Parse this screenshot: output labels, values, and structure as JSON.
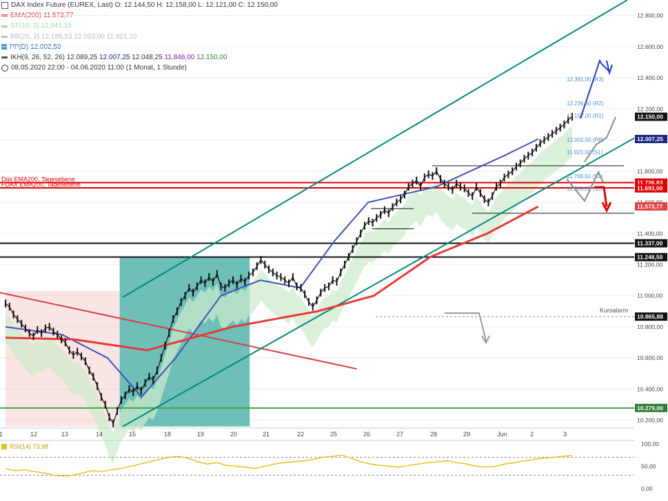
{
  "legend": {
    "header": "DAX Index Future (EUREX, Last)  O: 12.144,50  H: 12.158,00  L: 12.121,00  C: 12.150,00",
    "ema": "EMA(200)",
    "ema_value": "11.573,77",
    "st": "ST(10, 3)",
    "st_value": "12.041,15",
    "bb": "BB(20, 2)",
    "bb_values": "12.185,53  12.053,00  11.921,10",
    "pp": "PP(D)",
    "pp_value": "12.002,50",
    "ikh": "IKH(9, 26, 52, 26)",
    "ikh_values": [
      "12.089,25",
      "12.007,25",
      "12.048,25",
      "11.846,00",
      "12.150,00"
    ],
    "range": "08.05.2020 22:00 - 04.06.2020 11:00  (1 Monat, 1 Stunde)"
  },
  "colors": {
    "candle": "#111111",
    "ema": "#e53935",
    "channel": "#00897b",
    "kijun": "#3f51b5",
    "chikou": "#7b1fa2",
    "cloud_green": "#cdebcc",
    "cloud_grey": "#cfd3d8",
    "support": "#111111",
    "green_line": "#43a047",
    "rsi": "#e6c21a",
    "pivot_text": "#4a90d9",
    "arrow_blue": "#1f3fbf",
    "arrow_red": "#e00000",
    "arrow_grey": "#888888"
  },
  "chart_data": {
    "type": "line",
    "title": "DAX Index Future (EUREX, Last)",
    "ylim": [
      10150,
      12900
    ],
    "y_ticks": [
      "12.800,00",
      "12.600,00",
      "12.400,00",
      "12.200,00",
      "12.000,00",
      "11.800,00",
      "11.600,00",
      "11.400,00",
      "11.200,00",
      "11.000,00",
      "10.800,00",
      "10.600,00",
      "10.400,00",
      "10.200,00"
    ],
    "x_ticks": [
      "1",
      "12",
      "13",
      "14",
      "15",
      "18",
      "19",
      "20",
      "21",
      "22",
      "25",
      "26",
      "27",
      "28",
      "29",
      "Jun",
      "2",
      "3"
    ],
    "price_labels": [
      {
        "value": "12.150,00",
        "y": 12150,
        "bg": "#111111",
        "fg": "#ffffff"
      },
      {
        "value": "12.007,25",
        "y": 12007,
        "bg": "#1a237e",
        "fg": "#ffffff"
      },
      {
        "value": "11.726,83",
        "y": 11727,
        "bg": "#e00000",
        "fg": "#ffffff"
      },
      {
        "value": "11.693,00",
        "y": 11690,
        "bg": "#e00000",
        "fg": "#ffffff"
      },
      {
        "value": "11.573,77",
        "y": 11574,
        "bg": "#e04040",
        "fg": "#ffffff"
      },
      {
        "value": "11.337,00",
        "y": 11337,
        "bg": "#111111",
        "fg": "#ffffff"
      },
      {
        "value": "11.248,50",
        "y": 11248,
        "bg": "#111111",
        "fg": "#ffffff"
      },
      {
        "value": "10.865,88",
        "y": 10866,
        "bg": "#111111",
        "fg": "#ffffff"
      },
      {
        "value": "10.279,00",
        "y": 10279,
        "bg": "#2e7d32",
        "fg": "#ffffff"
      }
    ],
    "horizontal_levels": [
      {
        "value": 11726.83,
        "label": "Dax EMA200, Tagesebene",
        "color": "#e00000"
      },
      {
        "value": 11693.0,
        "label": "FDAX EMA200, Tagesebene",
        "color": "#e00000"
      },
      {
        "value": 11337.0,
        "label": "",
        "color": "#111111"
      },
      {
        "value": 11248.5,
        "label": "",
        "color": "#111111"
      },
      {
        "value": 10279.0,
        "label": "",
        "color": "#43a047"
      }
    ],
    "pivots": [
      {
        "label": "12.391,00 (R3)",
        "value": 12391
      },
      {
        "label": "12.236,50 (R2)",
        "value": 12236
      },
      {
        "label": "12.157,00 (R1)",
        "value": 12157
      },
      {
        "label": "12.002,50 (PP)",
        "value": 12002
      },
      {
        "label": "11.923,00 (S1)",
        "value": 11923
      },
      {
        "label": "11.768,50 (S2)",
        "value": 11768
      },
      {
        "label": "11.689,00 (S3)",
        "value": 11689
      }
    ],
    "alarm": {
      "label": "Kursalarm",
      "value": 10865.88
    },
    "close_series": [
      10950,
      10930,
      10880,
      10850,
      10820,
      10790,
      10760,
      10740,
      10780,
      10760,
      10790,
      10800,
      10770,
      10750,
      10720,
      10700,
      10650,
      10620,
      10640,
      10610,
      10580,
      10520,
      10480,
      10420,
      10350,
      10300,
      10220,
      10180,
      10260,
      10330,
      10360,
      10400,
      10380,
      10420,
      10390,
      10440,
      10480,
      10460,
      10520,
      10600,
      10680,
      10760,
      10850,
      10900,
      10960,
      11000,
      11050,
      11020,
      11060,
      11100,
      11080,
      11120,
      11090,
      11140,
      11060,
      11050,
      11080,
      11100,
      11070,
      11110,
      11090,
      11130,
      11150,
      11190,
      11230,
      11200,
      11170,
      11150,
      11130,
      11120,
      11100,
      11080,
      11120,
      11060,
      11050,
      11010,
      10960,
      10930,
      10970,
      11020,
      11050,
      11060,
      11100,
      11090,
      11150,
      11200,
      11250,
      11300,
      11350,
      11400,
      11450,
      11480,
      11470,
      11500,
      11520,
      11550,
      11530,
      11570,
      11600,
      11620,
      11650,
      11700,
      11720,
      11740,
      11700,
      11760,
      11780,
      11770,
      11800,
      11750,
      11720,
      11700,
      11680,
      11720,
      11700,
      11690,
      11660,
      11640,
      11700,
      11660,
      11620,
      11600,
      11640,
      11700,
      11720,
      11760,
      11780,
      11800,
      11830,
      11850,
      11880,
      11900,
      11920,
      11950,
      11980,
      12000,
      12020,
      12040,
      12060,
      12080,
      12100,
      12130,
      12150
    ],
    "ema200": {
      "x": [
        0,
        0.12,
        0.25,
        0.4,
        0.55,
        0.65,
        0.75,
        0.85,
        0.94
      ],
      "y": [
        10730,
        10720,
        10650,
        10800,
        10900,
        11000,
        11250,
        11400,
        11573
      ]
    },
    "kijun": {
      "x": [
        0,
        0.1,
        0.18,
        0.24,
        0.3,
        0.38,
        0.45,
        0.52,
        0.58,
        0.64,
        0.7,
        0.76,
        0.82,
        0.88,
        0.94
      ],
      "y": [
        10800,
        10750,
        10600,
        10350,
        10600,
        11000,
        11100,
        11050,
        11350,
        11600,
        11650,
        11700,
        11800,
        11900,
        12007
      ]
    },
    "channel_upper": {
      "x": [
        0.18,
        0.94
      ],
      "y": [
        10990,
        12900
      ]
    },
    "channel_lower": {
      "x": [
        0.18,
        0.99
      ],
      "y": [
        10160,
        12100
      ]
    },
    "downtrend": {
      "x": [
        0.0,
        0.53
      ],
      "y": [
        11020,
        10530
      ]
    },
    "rsi": {
      "name": "RSI(14)",
      "value": "73,98",
      "ylim": [
        0,
        100
      ],
      "ticks": [
        "100,00",
        "50,00",
        "0,00"
      ],
      "values": [
        45,
        40,
        42,
        38,
        35,
        30,
        28,
        30,
        35,
        40,
        38,
        42,
        45,
        50,
        55,
        60,
        65,
        70,
        72,
        68,
        60,
        55,
        58,
        52,
        50,
        48,
        45,
        50,
        55,
        58,
        60,
        62,
        65,
        70,
        72,
        75,
        68,
        60,
        55,
        52,
        50,
        48,
        52,
        55,
        58,
        60,
        62,
        58,
        55,
        50,
        48,
        50,
        55,
        58,
        62,
        65,
        68,
        70,
        72,
        74
      ]
    },
    "highlight_zones": [
      {
        "from": 0.0,
        "to": 0.18,
        "y1": 11030,
        "y2": 10160,
        "color": "rgba(240,180,180,0.35)"
      },
      {
        "from": 0.18,
        "to": 0.385,
        "y1": 11250,
        "y2": 10160,
        "color": "rgba(60,170,160,0.75)"
      }
    ]
  }
}
